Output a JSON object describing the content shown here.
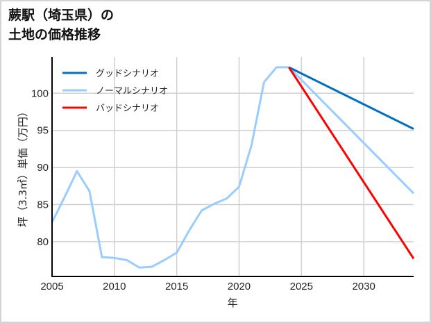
{
  "title_line1": "蕨駅（埼玉県）の",
  "title_line2": "土地の価格推移",
  "chart_data": {
    "type": "line",
    "title": "蕨駅（埼玉県）の土地の価格推移",
    "xlabel": "年",
    "ylabel": "坪（3.3㎡）単価（万円）",
    "xlim": [
      2005,
      2034
    ],
    "ylim": [
      75.3,
      104.9
    ],
    "xticks": [
      2005,
      2010,
      2015,
      2020,
      2025,
      2030
    ],
    "yticks": [
      80,
      85,
      90,
      95,
      100
    ],
    "grid": true,
    "legend_position": "upper left",
    "series": [
      {
        "name": "グッドシナリオ",
        "color": "#0070c0",
        "x": [
          2024,
          2034
        ],
        "y": [
          103.5,
          95.2
        ]
      },
      {
        "name": "ノーマルシナリオ",
        "color": "#99ccff",
        "x": [
          2005,
          2006,
          2007,
          2008,
          2009,
          2010,
          2011,
          2012,
          2013,
          2014,
          2015,
          2016,
          2017,
          2018,
          2019,
          2020,
          2021,
          2022,
          2023,
          2024,
          2034
        ],
        "y": [
          82.6,
          86.0,
          89.5,
          86.8,
          77.9,
          77.8,
          77.5,
          76.5,
          76.6,
          77.5,
          78.5,
          81.5,
          84.2,
          85.1,
          85.8,
          87.4,
          93.0,
          101.5,
          103.5,
          103.5,
          86.5
        ]
      },
      {
        "name": "バッドシナリオ",
        "color": "#ff0000",
        "x": [
          2024,
          2034
        ],
        "y": [
          103.5,
          77.7
        ]
      }
    ]
  }
}
